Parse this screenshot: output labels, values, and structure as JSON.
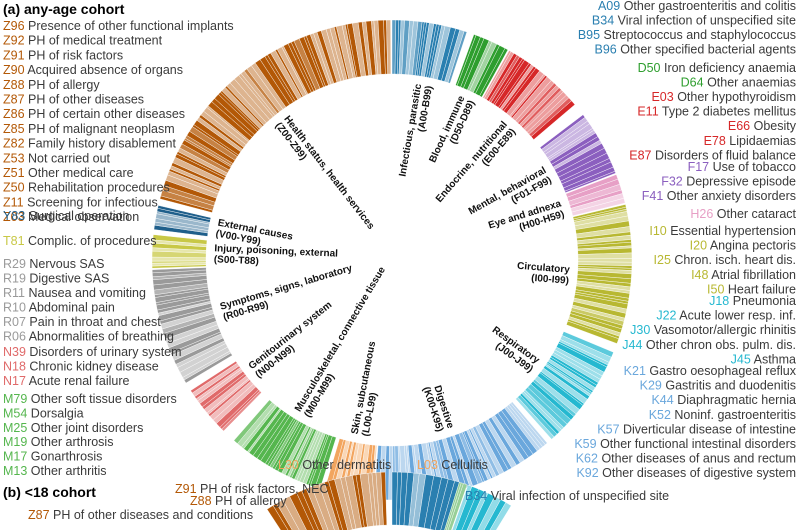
{
  "panel_a_title": "(a) any-age cohort",
  "panel_b_title": "(b) <18 cohort",
  "colors": {
    "Z": "#b35806",
    "Z_dark": "#1f5f8b",
    "Y": "#1f5f8b",
    "T": "#c8c846",
    "R": "#9a9a9a",
    "N": "#e06a6a",
    "M": "#55b64e",
    "L": "#f2a55f",
    "K": "#6aa7dc",
    "J": "#25b8d0",
    "I": "#b8b832",
    "H": "#e7a0c6",
    "F": "#8b5fbf",
    "E": "#d62728",
    "D": "#2e9e2e",
    "A": "#2a7fb0",
    "B": "#2a7fb0"
  },
  "left_labels": [
    {
      "code": "Z96",
      "text": "Presence of other functional implants",
      "group": "Z"
    },
    {
      "code": "Z92",
      "text": "PH of medical treatment",
      "group": "Z"
    },
    {
      "code": "Z91",
      "text": "PH of risk factors",
      "group": "Z"
    },
    {
      "code": "Z90",
      "text": "Acquired absence of organs",
      "group": "Z"
    },
    {
      "code": "Z88",
      "text": "PH of allergy",
      "group": "Z"
    },
    {
      "code": "Z87",
      "text": "PH of other diseases",
      "group": "Z"
    },
    {
      "code": "Z86",
      "text": "PH of certain other diseases",
      "group": "Z"
    },
    {
      "code": "Z85",
      "text": "PH of malignant neoplasm",
      "group": "Z"
    },
    {
      "code": "Z82",
      "text": "Family history disablement",
      "group": "Z"
    },
    {
      "code": "Z53",
      "text": "Not carried out",
      "group": "Z"
    },
    {
      "code": "Z51",
      "text": "Other medical care",
      "group": "Z"
    },
    {
      "code": "Z50",
      "text": "Rehabilitation procedures",
      "group": "Z"
    },
    {
      "code": "Z11",
      "text": "Screening for infectious",
      "group": "Z"
    },
    {
      "code": "Z03",
      "text": "Medical observation",
      "group": "Z"
    },
    {
      "code": "Y83",
      "text": "Surgical operation",
      "group": "Y"
    },
    {
      "code": "T81",
      "text": "Complic. of procedures",
      "group": "T"
    },
    {
      "code": "R29",
      "text": "Nervous SAS",
      "group": "R"
    },
    {
      "code": "R19",
      "text": "Digestive SAS",
      "group": "R"
    },
    {
      "code": "R11",
      "text": "Nausea and vomiting",
      "group": "R"
    },
    {
      "code": "R10",
      "text": "Abdominal pain",
      "group": "R"
    },
    {
      "code": "R07",
      "text": "Pain in throat and chest",
      "group": "R"
    },
    {
      "code": "R06",
      "text": "Abnormalities of breathing",
      "group": "R"
    },
    {
      "code": "N39",
      "text": "Disorders of urinary system",
      "group": "N"
    },
    {
      "code": "N18",
      "text": "Chronic kidney disease",
      "group": "N"
    },
    {
      "code": "N17",
      "text": "Acute renal failure",
      "group": "N"
    },
    {
      "code": "M79",
      "text": "Other soft tissue disorders",
      "group": "M"
    },
    {
      "code": "M54",
      "text": "Dorsalgia",
      "group": "M"
    },
    {
      "code": "M25",
      "text": "Other joint disorders",
      "group": "M"
    },
    {
      "code": "M19",
      "text": "Other arthrosis",
      "group": "M"
    },
    {
      "code": "M17",
      "text": "Gonarthrosis",
      "group": "M"
    },
    {
      "code": "M13",
      "text": "Other arthritis",
      "group": "M"
    }
  ],
  "right_labels": [
    {
      "code": "A09",
      "text": "Other gastroenteritis and colitis",
      "group": "A"
    },
    {
      "code": "B34",
      "text": "Viral infection of unspecified site",
      "group": "B"
    },
    {
      "code": "B95",
      "text": "Streptococcus and staphylococcus",
      "group": "B"
    },
    {
      "code": "B96",
      "text": "Other specified bacterial agents",
      "group": "B"
    },
    {
      "code": "D50",
      "text": "Iron deficiency anaemia",
      "group": "D"
    },
    {
      "code": "D64",
      "text": "Other anaemias",
      "group": "D"
    },
    {
      "code": "E03",
      "text": "Other hypothyroidism",
      "group": "E"
    },
    {
      "code": "E11",
      "text": "Type 2 diabetes mellitus",
      "group": "E"
    },
    {
      "code": "E66",
      "text": "Obesity",
      "group": "E"
    },
    {
      "code": "E78",
      "text": "Lipidaemias",
      "group": "E"
    },
    {
      "code": "E87",
      "text": "Disorders of fluid balance",
      "group": "E"
    },
    {
      "code": "F17",
      "text": "Use of tobacco",
      "group": "F"
    },
    {
      "code": "F32",
      "text": "Depressive episode",
      "group": "F"
    },
    {
      "code": "F41",
      "text": "Other anxiety disorders",
      "group": "F"
    },
    {
      "code": "H26",
      "text": "Other cataract",
      "group": "H"
    },
    {
      "code": "I10",
      "text": "Essential hypertension",
      "group": "I"
    },
    {
      "code": "I20",
      "text": "Angina pectoris",
      "group": "I"
    },
    {
      "code": "I25",
      "text": "Chron. isch. heart dis.",
      "group": "I"
    },
    {
      "code": "I48",
      "text": "Atrial fibrillation",
      "group": "I"
    },
    {
      "code": "I50",
      "text": "Heart failure",
      "group": "I"
    },
    {
      "code": "J18",
      "text": "Pneumonia",
      "group": "J"
    },
    {
      "code": "J22",
      "text": "Acute lower resp. inf.",
      "group": "J"
    },
    {
      "code": "J30",
      "text": "Vasomotor/allergic rhinitis",
      "group": "J"
    },
    {
      "code": "J44",
      "text": "Other chron obs. pulm. dis.",
      "group": "J"
    },
    {
      "code": "J45",
      "text": "Asthma",
      "group": "J"
    },
    {
      "code": "K21",
      "text": "Gastro oesophageal reflux",
      "group": "K"
    },
    {
      "code": "K29",
      "text": "Gastritis and duodenitis",
      "group": "K"
    },
    {
      "code": "K44",
      "text": "Diaphragmatic hernia",
      "group": "K"
    },
    {
      "code": "K52",
      "text": "Noninf. gastroenteritis",
      "group": "K"
    },
    {
      "code": "K57",
      "text": "Diverticular disease of intestine",
      "group": "K"
    },
    {
      "code": "K59",
      "text": "Other functional intestinal disorders",
      "group": "K"
    },
    {
      "code": "K62",
      "text": "Other diseases of anus and rectum",
      "group": "K"
    },
    {
      "code": "K92",
      "text": "Other diseases of digestive system",
      "group": "K"
    }
  ],
  "bottom_labels": [
    {
      "code": "L30",
      "text": "Other dermatitis",
      "group": "L"
    },
    {
      "code": "L03",
      "text": "Cellulitis",
      "group": "L"
    }
  ],
  "chapters": [
    {
      "name": "Infectious, parasitic",
      "range": "(A00-B99)",
      "group": "A",
      "share": 0.055
    },
    {
      "name": "Blood, immune",
      "range": "(D50-D89)",
      "group": "D",
      "share": 0.025
    },
    {
      "name": "Endocrine, nutritional",
      "range": "(E00-E89)",
      "group": "E",
      "share": 0.065
    },
    {
      "name": "Mental, behavioral",
      "range": "(F01-F99)",
      "group": "F",
      "share": 0.045
    },
    {
      "name": "Eye and adnexa",
      "range": "(H00-H59)",
      "group": "H",
      "share": 0.02
    },
    {
      "name": "Circulatory",
      "range": "(I00-I99)",
      "group": "I",
      "share": 0.1
    },
    {
      "name": "Respiratory",
      "range": "(J00-J99)",
      "group": "J",
      "share": 0.075
    },
    {
      "name": "Digestive",
      "range": "(K00-K95)",
      "group": "K",
      "share": 0.125
    },
    {
      "name": "Skin, subcutaneous",
      "range": "(L00-L99)",
      "group": "L",
      "share": 0.035
    },
    {
      "name": "Musculoskeletal, connective tissue",
      "range": "(M00-M99)",
      "group": "M",
      "share": 0.075
    },
    {
      "name": "Genitourinary system",
      "range": "(N00-N99)",
      "group": "N",
      "share": 0.04
    },
    {
      "name": "Symptoms, signs, laboratory",
      "range": "(R00-R99)",
      "group": "R",
      "share": 0.08
    },
    {
      "name": "Injury, poisoning, external",
      "range": "(S00-T88)",
      "group": "T",
      "share": 0.025
    },
    {
      "name": "External causes",
      "range": "(V00-Y99)",
      "group": "Y",
      "share": 0.02
    },
    {
      "name": "Health status, health services",
      "range": "(Z00-Z99)",
      "group": "Z",
      "share": 0.21
    }
  ],
  "panel_b_labels": [
    {
      "code": "Z91",
      "text": "PH of risk factors, NEC",
      "group": "Z"
    },
    {
      "code": "Z88",
      "text": "PH of allergy",
      "group": "Z"
    },
    {
      "code": "Z87",
      "text": "PH of other diseases and conditions",
      "group": "Z"
    },
    {
      "code": "B34",
      "text": "Viral infection of unspecified site",
      "group": "B"
    }
  ]
}
